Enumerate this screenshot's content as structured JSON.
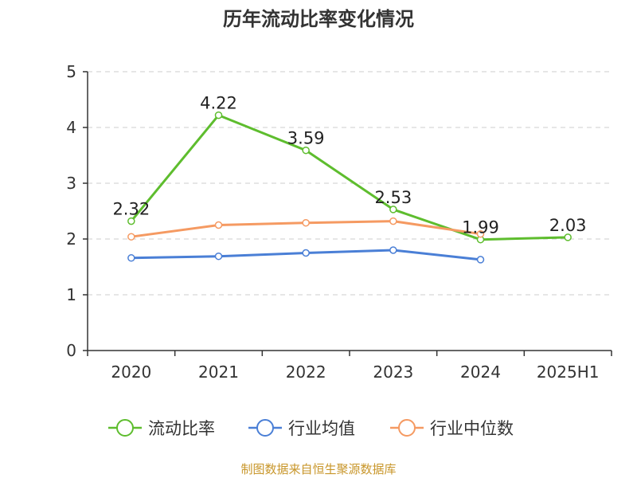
{
  "chart_data": {
    "type": "line",
    "title": "历年流动比率变化情况",
    "categories": [
      "2020",
      "2021",
      "2022",
      "2023",
      "2024",
      "2025H1"
    ],
    "ylim": [
      0,
      5
    ],
    "yticks": [
      0,
      1,
      2,
      3,
      4,
      5
    ],
    "grid": true,
    "legend_position": "bottom",
    "series": [
      {
        "name": "流动比率",
        "color": "#5ebd2e",
        "values": [
          2.32,
          4.22,
          3.59,
          2.53,
          1.99,
          2.03
        ],
        "labels": [
          "2.32",
          "4.22",
          "3.59",
          "2.53",
          "1.99",
          "2.03"
        ]
      },
      {
        "name": "行业均值",
        "color": "#4a7fd6",
        "values": [
          1.66,
          1.69,
          1.75,
          1.8,
          1.63,
          null
        ]
      },
      {
        "name": "行业中位数",
        "color": "#f59a62",
        "values": [
          2.04,
          2.25,
          2.29,
          2.32,
          2.09,
          null
        ]
      }
    ]
  },
  "source_text": "制图数据来自恒生聚源数据库"
}
